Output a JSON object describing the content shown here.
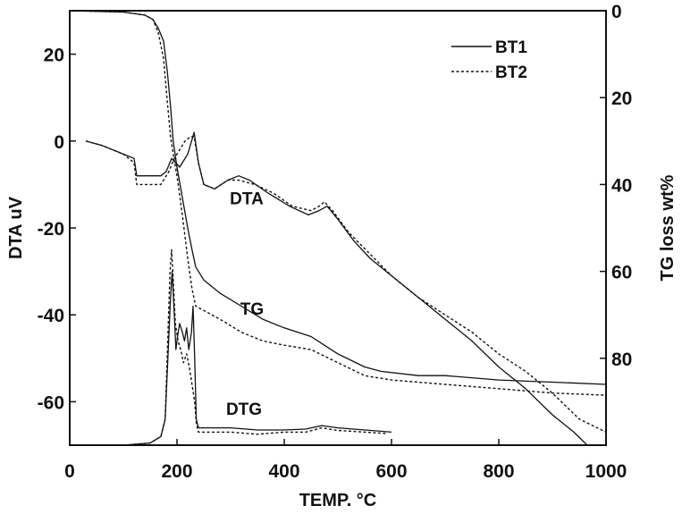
{
  "chart_data": {
    "type": "line",
    "xlabel": "TEMP. °C",
    "ylabel_left": "DTA uV",
    "ylabel_right": "TG loss wt%",
    "xlim": [
      0,
      1000
    ],
    "ylim_left": [
      -70,
      30
    ],
    "ylim_right": [
      0,
      100
    ],
    "right_axis_inverted": true,
    "xticks": [
      0,
      200,
      400,
      600,
      800,
      1000
    ],
    "yticks_left": [
      20,
      0,
      -20,
      -40,
      -60
    ],
    "yticks_right": [
      0,
      20,
      40,
      60,
      80
    ],
    "legend": {
      "position": "top-right",
      "entries": [
        "BT1",
        "BT2"
      ]
    },
    "annotations": [
      {
        "text": "DTA",
        "x": 330,
        "y": -14.5,
        "axis": "left"
      },
      {
        "text": "TG",
        "x": 340,
        "y": 70,
        "axis": "right"
      },
      {
        "text": "DTG",
        "x": 325,
        "y": 93,
        "axis": "right"
      }
    ],
    "series": [
      {
        "name": "BT1",
        "curve": "DTA",
        "axis": "left",
        "style": "solid",
        "points": [
          [
            30,
            0
          ],
          [
            60,
            -1
          ],
          [
            100,
            -3
          ],
          [
            120,
            -4
          ],
          [
            125,
            -8
          ],
          [
            140,
            -8
          ],
          [
            170,
            -8
          ],
          [
            180,
            -7
          ],
          [
            190,
            -4
          ],
          [
            205,
            -6
          ],
          [
            220,
            -3
          ],
          [
            232,
            2
          ],
          [
            240,
            -5
          ],
          [
            250,
            -10
          ],
          [
            270,
            -11
          ],
          [
            295,
            -9
          ],
          [
            315,
            -8
          ],
          [
            335,
            -9
          ],
          [
            370,
            -12
          ],
          [
            410,
            -15
          ],
          [
            445,
            -17
          ],
          [
            465,
            -16
          ],
          [
            480,
            -15
          ],
          [
            500,
            -18
          ],
          [
            530,
            -23
          ],
          [
            560,
            -27
          ],
          [
            590,
            -30
          ],
          [
            650,
            -36
          ],
          [
            700,
            -41
          ],
          [
            750,
            -46
          ],
          [
            800,
            -52
          ],
          [
            850,
            -57
          ],
          [
            900,
            -63
          ],
          [
            940,
            -67
          ],
          [
            965,
            -70
          ]
        ]
      },
      {
        "name": "BT2",
        "curve": "DTA",
        "axis": "left",
        "style": "dashed",
        "points": [
          [
            30,
            0
          ],
          [
            60,
            -1
          ],
          [
            100,
            -3
          ],
          [
            120,
            -5
          ],
          [
            125,
            -10
          ],
          [
            150,
            -10
          ],
          [
            170,
            -10
          ],
          [
            185,
            -7
          ],
          [
            195,
            -4
          ],
          [
            205,
            -2
          ],
          [
            215,
            0
          ],
          [
            225,
            1
          ],
          [
            232,
            1
          ],
          [
            240,
            -5
          ],
          [
            250,
            -10
          ],
          [
            270,
            -11
          ],
          [
            295,
            -9
          ],
          [
            315,
            -9
          ],
          [
            345,
            -10
          ],
          [
            380,
            -12
          ],
          [
            415,
            -15
          ],
          [
            450,
            -16
          ],
          [
            465,
            -15
          ],
          [
            475,
            -14
          ],
          [
            490,
            -16
          ],
          [
            520,
            -21
          ],
          [
            560,
            -26
          ],
          [
            600,
            -31
          ],
          [
            650,
            -36
          ],
          [
            700,
            -40
          ],
          [
            750,
            -44
          ],
          [
            800,
            -49
          ],
          [
            850,
            -53
          ],
          [
            900,
            -58
          ],
          [
            950,
            -64
          ],
          [
            1000,
            -67
          ]
        ]
      },
      {
        "name": "BT1",
        "curve": "TG",
        "axis": "right",
        "style": "solid",
        "points": [
          [
            0,
            0
          ],
          [
            100,
            0.3
          ],
          [
            140,
            1
          ],
          [
            155,
            2
          ],
          [
            165,
            4
          ],
          [
            175,
            7
          ],
          [
            182,
            14
          ],
          [
            188,
            22
          ],
          [
            193,
            30
          ],
          [
            200,
            36
          ],
          [
            210,
            43
          ],
          [
            220,
            50
          ],
          [
            228,
            55
          ],
          [
            235,
            59
          ],
          [
            250,
            62
          ],
          [
            280,
            65
          ],
          [
            320,
            68
          ],
          [
            360,
            71
          ],
          [
            400,
            73
          ],
          [
            450,
            75
          ],
          [
            500,
            79
          ],
          [
            550,
            82
          ],
          [
            580,
            83
          ],
          [
            650,
            84
          ],
          [
            700,
            84
          ],
          [
            800,
            85
          ],
          [
            900,
            85.5
          ],
          [
            1000,
            86
          ]
        ]
      },
      {
        "name": "BT2",
        "curve": "TG",
        "axis": "right",
        "style": "dashed",
        "points": [
          [
            0,
            0
          ],
          [
            100,
            0.3
          ],
          [
            140,
            1
          ],
          [
            155,
            2
          ],
          [
            165,
            5
          ],
          [
            175,
            11
          ],
          [
            182,
            21
          ],
          [
            188,
            29
          ],
          [
            193,
            33
          ],
          [
            200,
            38
          ],
          [
            210,
            47
          ],
          [
            220,
            57
          ],
          [
            228,
            64
          ],
          [
            235,
            68
          ],
          [
            250,
            69
          ],
          [
            280,
            71
          ],
          [
            320,
            74
          ],
          [
            360,
            76
          ],
          [
            400,
            77
          ],
          [
            450,
            78
          ],
          [
            500,
            81
          ],
          [
            550,
            84
          ],
          [
            600,
            85
          ],
          [
            700,
            86
          ],
          [
            800,
            87
          ],
          [
            900,
            88
          ],
          [
            1000,
            88.5
          ]
        ]
      },
      {
        "name": "BT1",
        "curve": "DTG",
        "axis": "right",
        "style": "solid",
        "points": [
          [
            0,
            100
          ],
          [
            100,
            100
          ],
          [
            150,
            99.5
          ],
          [
            170,
            98
          ],
          [
            178,
            94
          ],
          [
            183,
            80
          ],
          [
            188,
            66
          ],
          [
            191,
            60
          ],
          [
            195,
            70
          ],
          [
            198,
            78
          ],
          [
            201,
            75
          ],
          [
            205,
            72
          ],
          [
            210,
            74
          ],
          [
            214,
            76
          ],
          [
            218,
            73
          ],
          [
            222,
            78
          ],
          [
            227,
            74
          ],
          [
            230,
            68
          ],
          [
            233,
            80
          ],
          [
            236,
            94
          ],
          [
            240,
            96
          ],
          [
            260,
            96
          ],
          [
            300,
            96
          ],
          [
            350,
            96.5
          ],
          [
            400,
            96.5
          ],
          [
            440,
            96.3
          ],
          [
            470,
            95.5
          ],
          [
            500,
            96
          ],
          [
            550,
            96.5
          ],
          [
            580,
            96.8
          ],
          [
            600,
            97
          ]
        ]
      },
      {
        "name": "BT2",
        "curve": "DTG",
        "axis": "right",
        "style": "dashed",
        "points": [
          [
            0,
            100
          ],
          [
            100,
            100
          ],
          [
            150,
            99.5
          ],
          [
            170,
            98
          ],
          [
            178,
            94
          ],
          [
            183,
            75
          ],
          [
            187,
            60
          ],
          [
            190,
            55
          ],
          [
            193,
            62
          ],
          [
            197,
            72
          ],
          [
            202,
            76
          ],
          [
            207,
            78
          ],
          [
            212,
            81
          ],
          [
            218,
            79
          ],
          [
            223,
            82
          ],
          [
            228,
            86
          ],
          [
            233,
            90
          ],
          [
            236,
            95
          ],
          [
            240,
            97
          ],
          [
            260,
            97
          ],
          [
            300,
            97
          ],
          [
            350,
            97.5
          ],
          [
            400,
            97
          ],
          [
            440,
            97
          ],
          [
            470,
            96
          ],
          [
            500,
            96.6
          ],
          [
            550,
            97
          ],
          [
            590,
            97.3
          ]
        ]
      }
    ]
  }
}
